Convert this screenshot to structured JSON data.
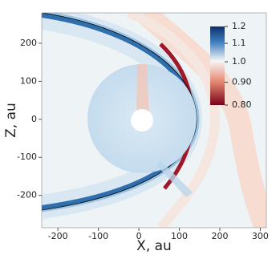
{
  "chart_data": {
    "type": "heatmap",
    "x_label": "X, au",
    "y_label": "Z, au",
    "xlim": [
      -240,
      315
    ],
    "xticks": [
      -200,
      -100,
      0,
      100,
      200,
      300
    ],
    "ylim": [
      -285,
      280
    ],
    "yticks": [
      -200,
      -100,
      0,
      100,
      200
    ],
    "colorbar": {
      "lim": [
        0.8,
        1.2
      ],
      "log": true,
      "ticks": [
        1.2,
        1.1,
        {
          "value": 1,
          "label": "1.0"
        },
        {
          "value": 0.9,
          "label": "0.90"
        },
        {
          "value": 0.8,
          "label": "0.80"
        }
      ]
    }
  }
}
